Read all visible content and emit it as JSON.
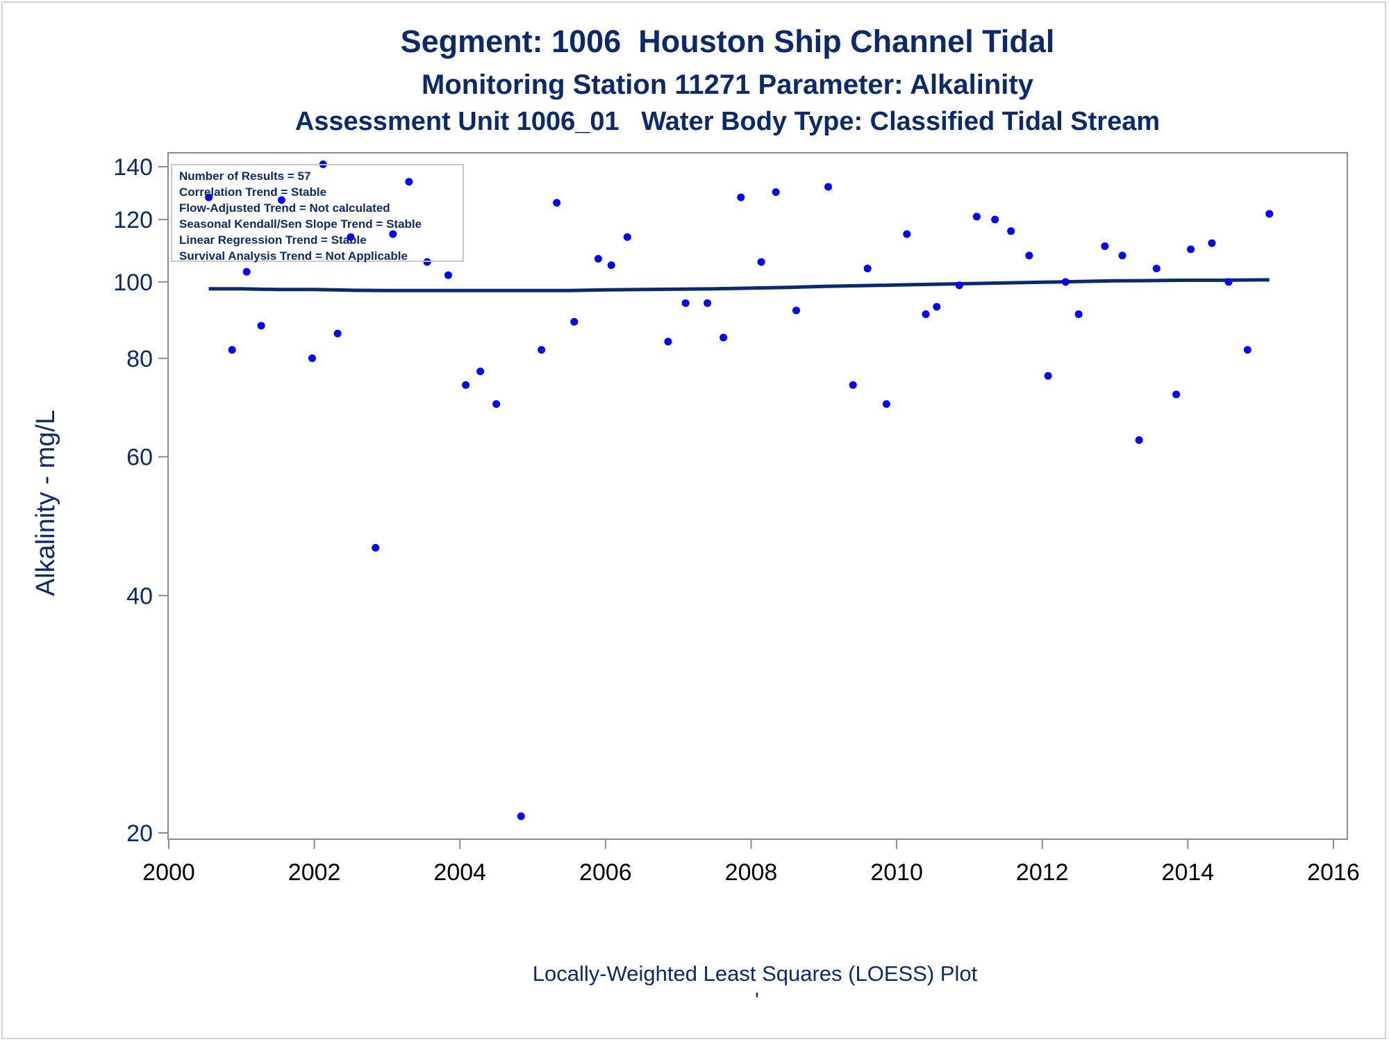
{
  "chart_data": {
    "type": "scatter",
    "title": "Segment: 1006  Houston Ship Channel Tidal",
    "subtitle": "Monitoring Station 11271 Parameter: Alkalinity",
    "subtitle2": "Assessment Unit 1006_01   Water Body Type: Classified Tidal Stream",
    "ylabel": "Alkalinity - mg/L",
    "footer": "Locally-Weighted Least Squares (LOESS) Plot",
    "footer_mark": "'",
    "y_scale": "log",
    "xlim": [
      2000,
      2016
    ],
    "ylim": [
      20,
      140
    ],
    "x_ticks": [
      "2000",
      "2002",
      "2004",
      "2006",
      "2008",
      "2010",
      "2012",
      "2014",
      "2016"
    ],
    "y_ticks": [
      "20",
      "40",
      "60",
      "80",
      "100",
      "120",
      "140"
    ],
    "stats": [
      "Number of Results = 57",
      "Correlation Trend = Stable",
      "Flow-Adjusted Trend = Not calculated",
      "Seasonal Kendall/Sen Slope Trend = Stable",
      "Linear Regression Trend = Stable",
      "Survival Analysis Trend = Not Applicable"
    ],
    "legend_placement": "top-left",
    "colors": {
      "points": "#0000ff",
      "loess": "#0b2a6e",
      "text": "#0b2a6e",
      "axis": "#8c8c8c"
    },
    "series": [
      {
        "type": "scatter",
        "x": [
          2000.55,
          2000.87,
          2001.07,
          2001.27,
          2001.55,
          2001.97,
          2002.12,
          2002.32,
          2002.5,
          2002.84,
          2003.08,
          2003.3,
          2003.55,
          2003.84,
          2004.08,
          2004.28,
          2004.5,
          2004.84,
          2005.12,
          2005.33,
          2005.57,
          2005.9,
          2006.08,
          2006.3,
          2006.86,
          2007.1,
          2007.4,
          2007.62,
          2007.86,
          2008.14,
          2008.34,
          2008.62,
          2009.06,
          2009.4,
          2009.6,
          2009.86,
          2010.14,
          2010.4,
          2010.55,
          2010.86,
          2011.1,
          2011.35,
          2011.57,
          2011.82,
          2012.08,
          2012.32,
          2012.5,
          2012.86,
          2013.1,
          2013.33,
          2013.57,
          2013.84,
          2014.04,
          2014.33,
          2014.56,
          2014.82,
          2015.12
        ],
        "y": [
          128,
          82,
          103,
          88,
          127,
          80,
          141,
          86,
          114,
          46,
          115,
          134,
          106,
          102,
          74,
          77,
          70,
          21,
          82,
          126,
          89,
          107,
          105,
          114,
          84,
          94,
          94,
          85,
          128,
          106,
          130,
          92,
          132,
          74,
          104,
          70,
          115,
          91,
          93,
          99,
          121,
          120,
          116,
          108,
          76,
          100,
          91,
          111,
          108,
          63,
          104,
          72,
          110,
          112,
          100,
          82,
          122
        ]
      },
      {
        "type": "line",
        "name": "LOESS",
        "x": [
          2000.55,
          2001,
          2001.5,
          2002,
          2002.5,
          2003,
          2003.5,
          2004,
          2004.5,
          2005,
          2005.5,
          2006,
          2006.5,
          2007,
          2007.5,
          2008,
          2008.5,
          2009,
          2009.5,
          2010,
          2010.5,
          2011,
          2011.5,
          2012,
          2012.5,
          2013,
          2013.5,
          2014,
          2014.5,
          2015,
          2015.12
        ],
        "y": [
          98,
          98,
          97.8,
          97.8,
          97.6,
          97.5,
          97.5,
          97.5,
          97.5,
          97.5,
          97.5,
          97.7,
          97.8,
          97.9,
          98,
          98.2,
          98.4,
          98.7,
          98.9,
          99.1,
          99.3,
          99.5,
          99.7,
          99.9,
          100.1,
          100.3,
          100.4,
          100.5,
          100.5,
          100.6,
          100.6
        ]
      }
    ]
  }
}
